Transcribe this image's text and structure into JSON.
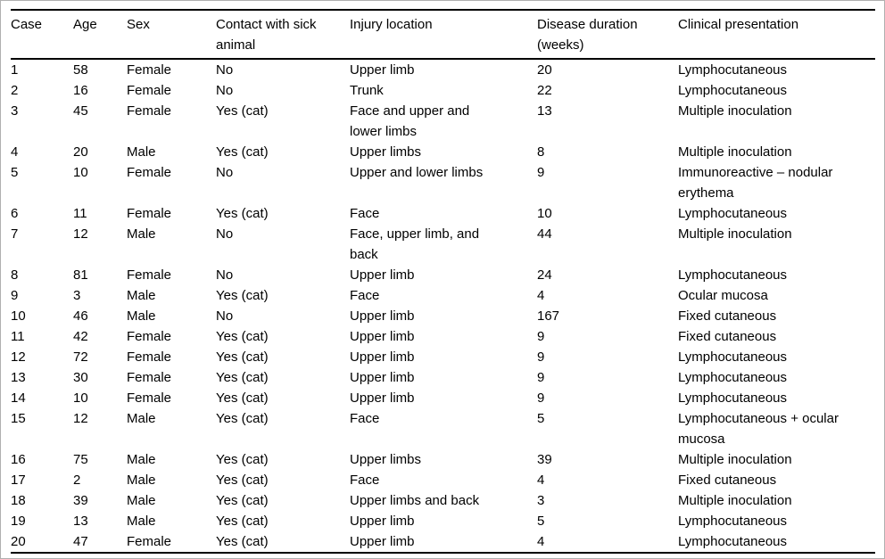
{
  "table": {
    "columns": [
      {
        "key": "case",
        "label": "Case"
      },
      {
        "key": "age",
        "label": "Age"
      },
      {
        "key": "sex",
        "label": "Sex"
      },
      {
        "key": "contact",
        "label": "Contact with sick animal"
      },
      {
        "key": "injury",
        "label": "Injury location"
      },
      {
        "key": "duration",
        "label": "Disease duration (weeks)"
      },
      {
        "key": "clinical",
        "label": "Clinical presentation"
      }
    ],
    "rows": [
      [
        "1",
        "58",
        "Female",
        "No",
        "Upper limb",
        "20",
        "Lymphocutaneous"
      ],
      [
        "2",
        "16",
        "Female",
        "No",
        "Trunk",
        "22",
        "Lymphocutaneous"
      ],
      [
        "3",
        "45",
        "Female",
        "Yes (cat)",
        "Face and upper and lower limbs",
        "13",
        "Multiple inoculation"
      ],
      [
        "4",
        "20",
        "Male",
        "Yes (cat)",
        "Upper limbs",
        "8",
        "Multiple inoculation"
      ],
      [
        "5",
        "10",
        "Female",
        "No",
        "Upper and lower limbs",
        "9",
        "Immunoreactive – nodular erythema"
      ],
      [
        "6",
        "11",
        "Female",
        "Yes (cat)",
        "Face",
        "10",
        "Lymphocutaneous"
      ],
      [
        "7",
        "12",
        "Male",
        "No",
        "Face, upper limb, and back",
        "44",
        "Multiple inoculation"
      ],
      [
        "8",
        "81",
        "Female",
        "No",
        "Upper limb",
        "24",
        "Lymphocutaneous"
      ],
      [
        "9",
        "3",
        "Male",
        "Yes (cat)",
        "Face",
        "4",
        "Ocular mucosa"
      ],
      [
        "10",
        "46",
        "Male",
        "No",
        "Upper limb",
        "167",
        "Fixed cutaneous"
      ],
      [
        "11",
        "42",
        "Female",
        "Yes (cat)",
        "Upper limb",
        "9",
        "Fixed cutaneous"
      ],
      [
        "12",
        "72",
        "Female",
        "Yes (cat)",
        "Upper limb",
        "9",
        "Lymphocutaneous"
      ],
      [
        "13",
        "30",
        "Female",
        "Yes (cat)",
        "Upper limb",
        "9",
        "Lymphocutaneous"
      ],
      [
        "14",
        "10",
        "Female",
        "Yes (cat)",
        "Upper limb",
        "9",
        "Lymphocutaneous"
      ],
      [
        "15",
        "12",
        "Male",
        "Yes (cat)",
        "Face",
        "5",
        "Lymphocutaneous + ocular mucosa"
      ],
      [
        "16",
        "75",
        "Male",
        "Yes (cat)",
        "Upper limbs",
        "39",
        "Multiple inoculation"
      ],
      [
        "17",
        "2",
        "Male",
        "Yes (cat)",
        "Face",
        "4",
        "Fixed cutaneous"
      ],
      [
        "18",
        "39",
        "Male",
        "Yes (cat)",
        "Upper limbs and back",
        "3",
        "Multiple inoculation"
      ],
      [
        "19",
        "13",
        "Male",
        "Yes (cat)",
        "Upper limb",
        "5",
        "Lymphocutaneous"
      ],
      [
        "20",
        "47",
        "Female",
        "Yes (cat)",
        "Upper limb",
        "4",
        "Lymphocutaneous"
      ]
    ]
  },
  "colors": {
    "text": "#000000",
    "rule": "#000000",
    "frame": "#b0b0b0",
    "background": "#ffffff"
  }
}
